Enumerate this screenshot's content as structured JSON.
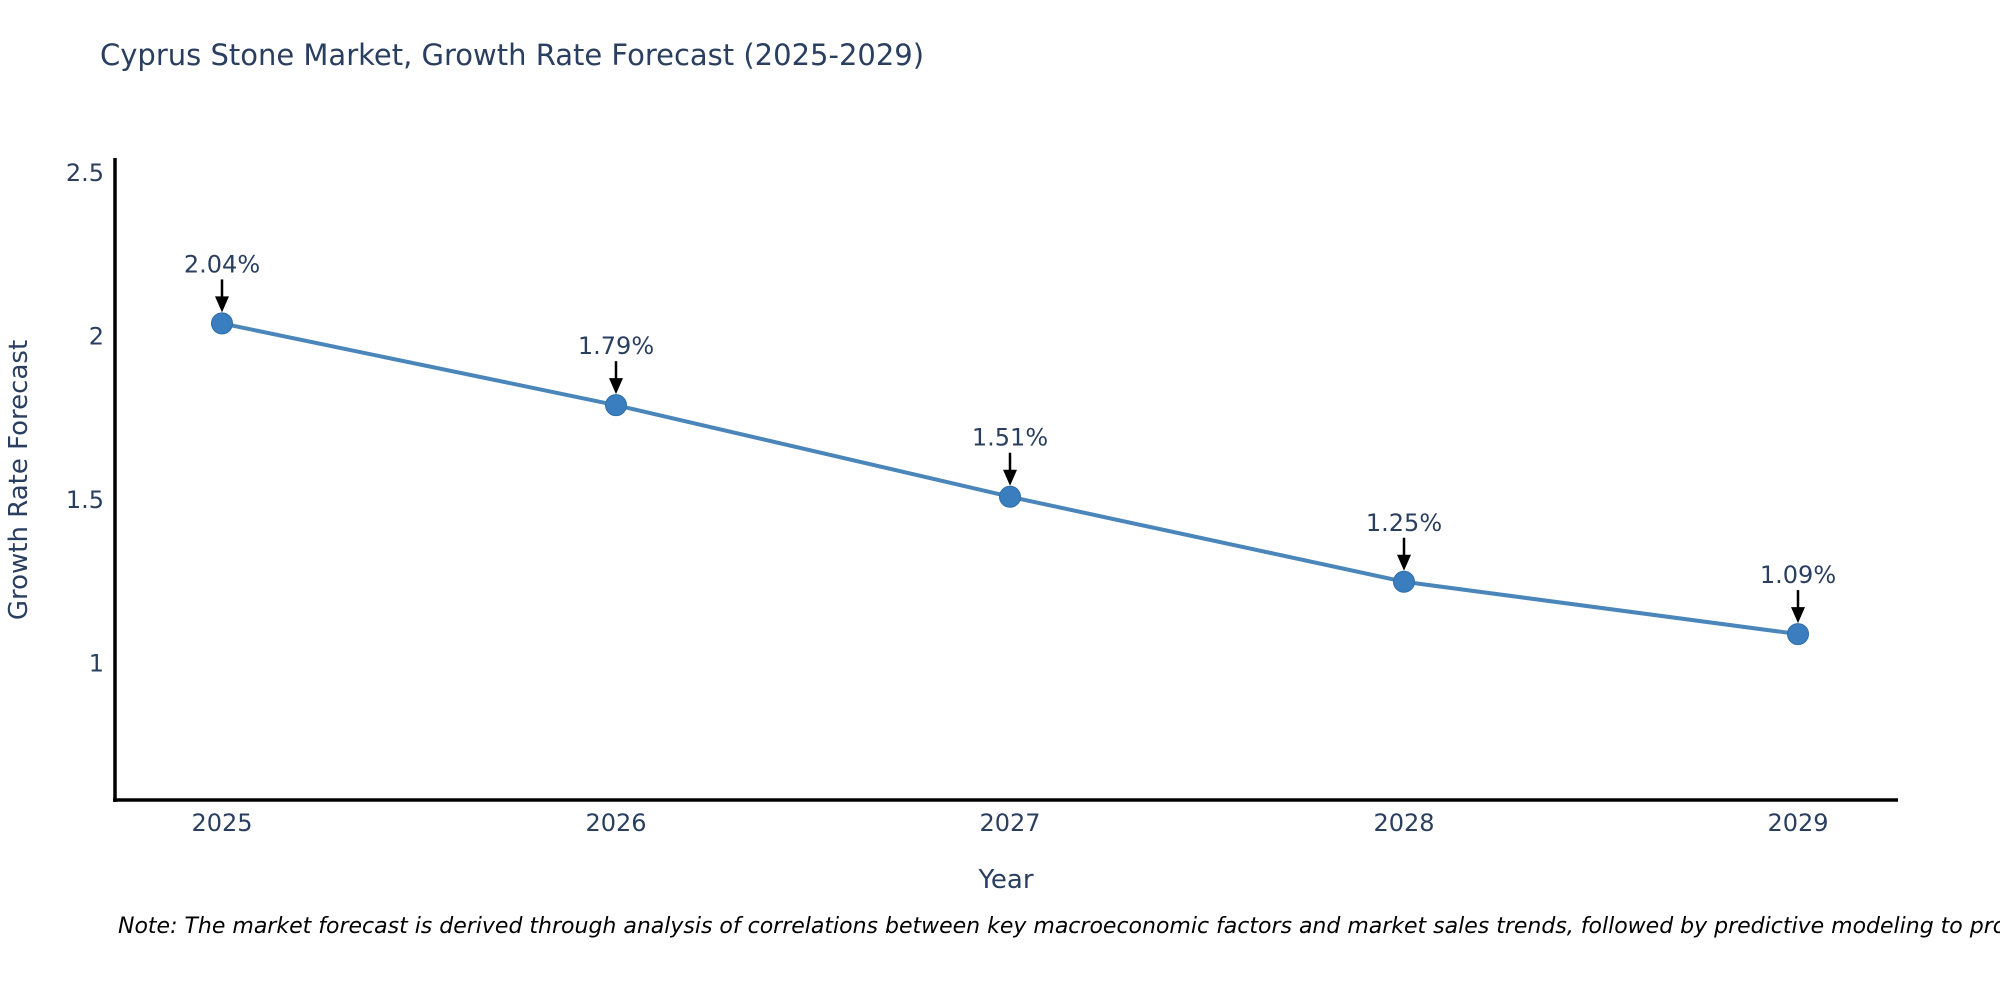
{
  "page": {
    "note": "Note: The market forecast is derived through analysis of correlations between key macroeconomic factors and market sales trends, followed by predictive modeling to project future sales"
  },
  "chart_data": {
    "type": "line",
    "title": "Cyprus Stone Market, Growth Rate Forecast (2025-2029)",
    "xlabel": "Year",
    "ylabel": "Growth Rate Forecast",
    "x": [
      "2025",
      "2026",
      "2027",
      "2028",
      "2029"
    ],
    "series": [
      {
        "name": "Growth Rate Forecast",
        "values": [
          2.04,
          1.79,
          1.51,
          1.25,
          1.09
        ],
        "point_labels": [
          "2.04%",
          "1.79%",
          "1.51%",
          "1.25%",
          "1.09%"
        ]
      }
    ],
    "yticks": [
      1,
      1.5,
      2,
      2.5
    ],
    "ylim": [
      0.58,
      2.55
    ],
    "grid": false,
    "legend": false,
    "annotations_have_arrows": true,
    "colors": {
      "line": "#4a86ba",
      "marker": "#3b7ec0",
      "marker_edge": "#2e6da8",
      "axis_line": "#000000",
      "text": "#2a3f5f",
      "arrow": "#000000",
      "note_text": "#000000",
      "background": "#ffffff"
    }
  }
}
